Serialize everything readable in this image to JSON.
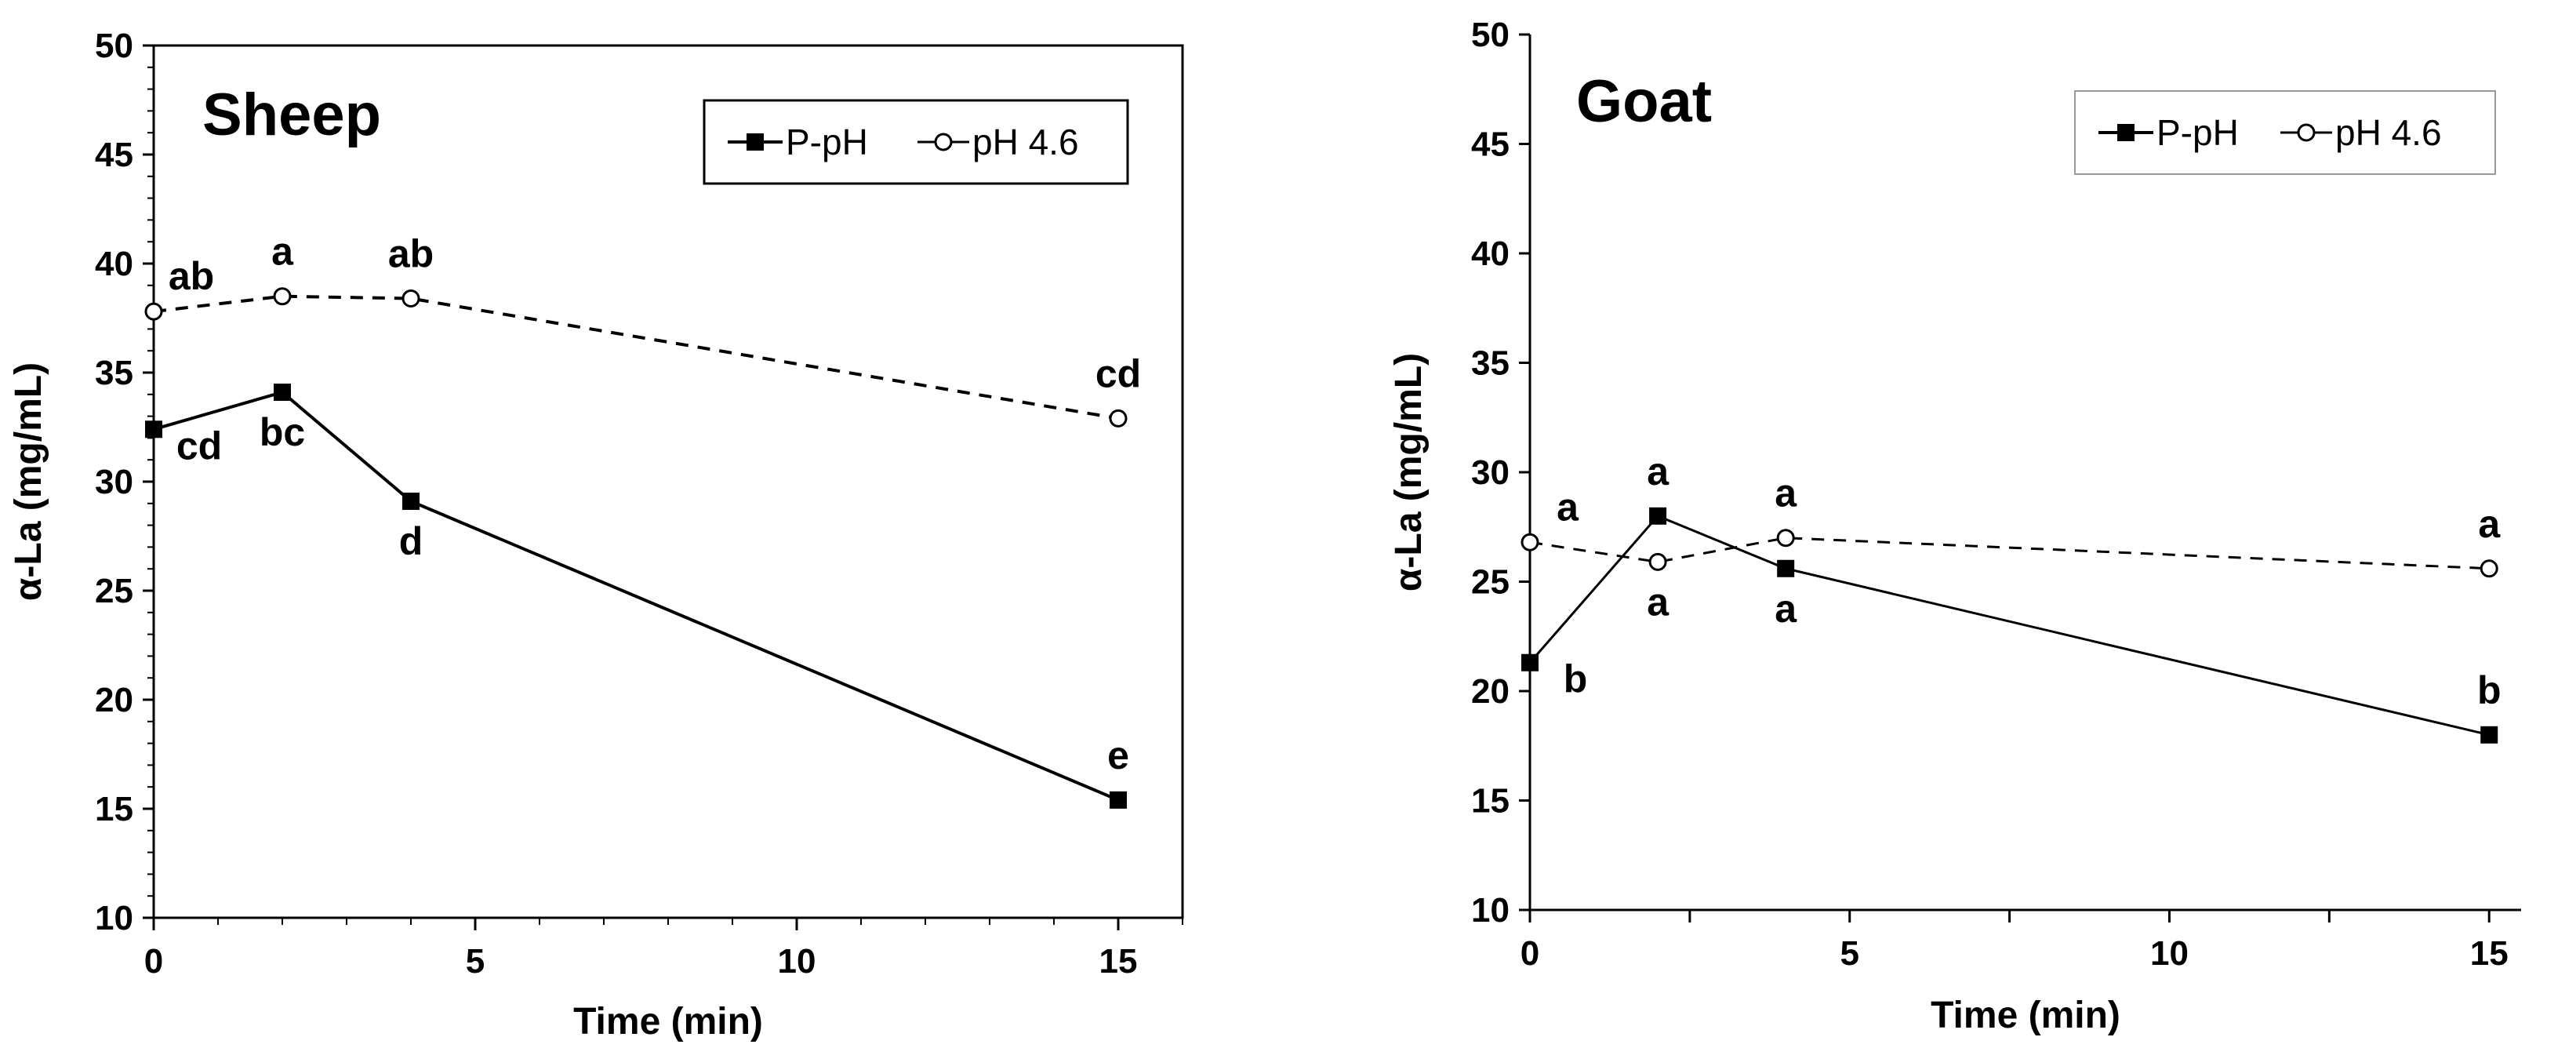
{
  "figure": "alpha-La concentration over time, P-pH vs pH 4.6",
  "chart_data": [
    {
      "type": "line",
      "title": "Sheep",
      "xlabel": "Time (min)",
      "ylabel": "α-La (mg/mL)",
      "xlim": [
        0,
        16
      ],
      "ylim": [
        10,
        50
      ],
      "xticks": [
        0,
        5,
        10,
        15
      ],
      "yticks": [
        10,
        15,
        20,
        25,
        30,
        35,
        40,
        45,
        50
      ],
      "legend": {
        "position": "top-right",
        "entries": [
          "P-pH",
          "pH 4.6"
        ]
      },
      "series": [
        {
          "name": "P-pH",
          "style": "solid",
          "marker": "filled-square",
          "x": [
            0,
            2,
            4,
            15
          ],
          "y": [
            32.4,
            34.1,
            29.1,
            15.4
          ],
          "labels": [
            "cd",
            "bc",
            "d",
            "e"
          ],
          "label_side": [
            "below-right",
            "below",
            "below",
            "above"
          ]
        },
        {
          "name": "pH 4.6",
          "style": "dashed",
          "marker": "open-circle",
          "x": [
            0,
            2,
            4,
            15
          ],
          "y": [
            37.8,
            38.5,
            38.4,
            32.9
          ],
          "labels": [
            "ab",
            "a",
            "ab",
            "cd"
          ],
          "label_side": [
            "above-right",
            "above",
            "above",
            "above"
          ]
        }
      ]
    },
    {
      "type": "line",
      "title": "Goat",
      "xlabel": "Time (min)",
      "ylabel": "α-La (mg/mL)",
      "xlim": [
        0,
        15.5
      ],
      "ylim": [
        10,
        50
      ],
      "xticks": [
        0,
        5,
        10,
        15
      ],
      "yticks": [
        10,
        15,
        20,
        25,
        30,
        35,
        40,
        45,
        50
      ],
      "legend": {
        "position": "top-right",
        "entries": [
          "P-pH",
          "pH 4.6"
        ]
      },
      "series": [
        {
          "name": "P-pH",
          "style": "solid",
          "marker": "filled-square",
          "x": [
            0,
            2,
            4,
            15
          ],
          "y": [
            21.3,
            28.0,
            25.6,
            18.0
          ],
          "labels": [
            "b",
            "a",
            "a",
            "b"
          ],
          "label_side": [
            "below-right",
            "above",
            "below",
            "above"
          ]
        },
        {
          "name": "pH 4.6",
          "style": "dashed",
          "marker": "open-circle",
          "x": [
            0,
            2,
            4,
            15
          ],
          "y": [
            26.8,
            25.9,
            27.0,
            25.6
          ],
          "labels": [
            "a",
            "a",
            "a",
            "a"
          ],
          "label_side": [
            "above-right",
            "below",
            "above",
            "above"
          ]
        }
      ]
    }
  ]
}
